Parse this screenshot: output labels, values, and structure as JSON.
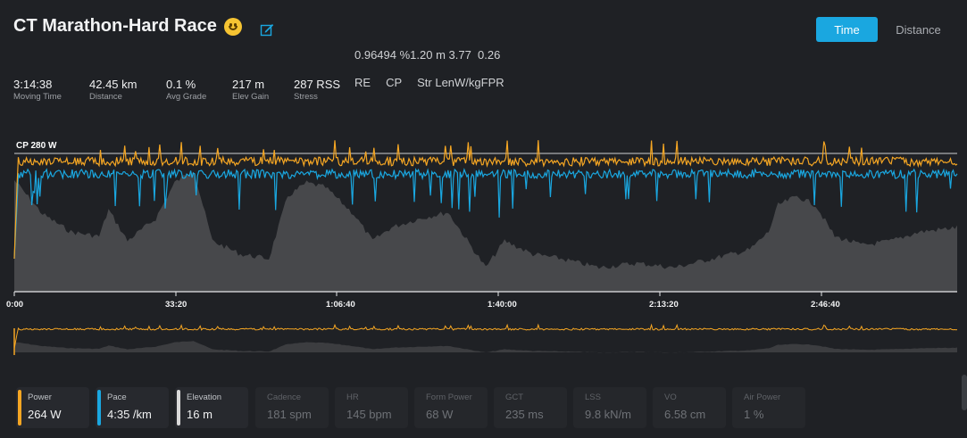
{
  "header": {
    "title": "CT Marathon-Hard Race",
    "emoji_icon": "smiley-face-icon",
    "edit_icon": "edit-icon"
  },
  "view_toggle": {
    "time_label": "Time",
    "distance_label": "Distance",
    "selected": "Time"
  },
  "metrics_line": "0.96494 %1.20 m 3.77  0.26",
  "metric_labels": [
    "RE",
    "CP",
    "Str LenW/kgFPR"
  ],
  "stats": [
    {
      "value": "3:14:38",
      "label": "Moving Time"
    },
    {
      "value": "42.45 km",
      "label": "Distance"
    },
    {
      "value": "0.1 %",
      "label": "Avg Grade"
    },
    {
      "value": "217 m",
      "label": "Elev Gain"
    },
    {
      "value": "287 RSS",
      "label": "Stress"
    }
  ],
  "chart": {
    "cp_label": "CP 280 W",
    "x_ticks": [
      "0:00",
      "33:20",
      "1:06:40",
      "1:40:00",
      "2:13:20",
      "2:46:40"
    ],
    "colors": {
      "power": "#f5a623",
      "pace": "#1aa7e0",
      "elevation": "#4a4b4e",
      "cp_line": "#cfd1d4"
    }
  },
  "legend": [
    {
      "name": "Power",
      "value": "264 W",
      "color": "#f5a623",
      "active": true
    },
    {
      "name": "Pace",
      "value": "4:35 /km",
      "color": "#1aa7e0",
      "active": true
    },
    {
      "name": "Elevation",
      "value": "16 m",
      "color": "#d9d9d9",
      "active": true
    },
    {
      "name": "Cadence",
      "value": "181 spm",
      "active": false
    },
    {
      "name": "HR",
      "value": "145 bpm",
      "active": false
    },
    {
      "name": "Form Power",
      "value": "68 W",
      "active": false
    },
    {
      "name": "GCT",
      "value": "235 ms",
      "active": false
    },
    {
      "name": "LSS",
      "value": "9.8 kN/m",
      "active": false
    },
    {
      "name": "VO",
      "value": "6.58 cm",
      "active": false
    },
    {
      "name": "Air Power",
      "value": "1 %",
      "active": false
    }
  ]
}
